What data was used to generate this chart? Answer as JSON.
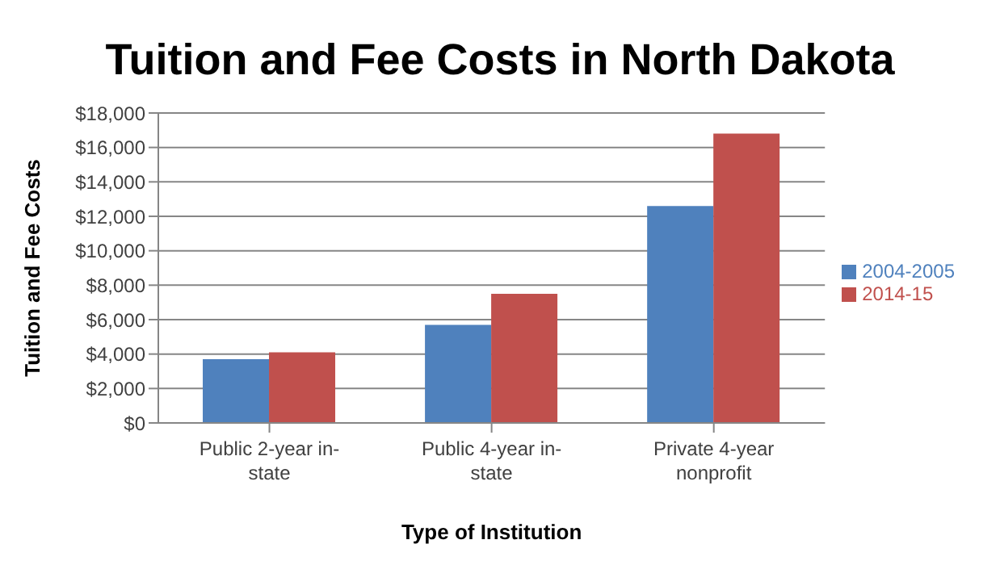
{
  "chart_data": {
    "type": "bar",
    "title": "Tuition and Fee Costs in North Dakota",
    "xlabel": "Type of Institution",
    "ylabel": "Tuition and Fee Costs",
    "categories": [
      "Public 2-year in-state",
      "Public 4-year in-state",
      "Private 4-year nonprofit"
    ],
    "series": [
      {
        "name": "2004-2005",
        "color": "#4f81bd",
        "values": [
          3700,
          5700,
          12600
        ]
      },
      {
        "name": "2014-15",
        "color": "#c0504d",
        "values": [
          4100,
          7500,
          16800
        ]
      }
    ],
    "ylim": [
      0,
      18000
    ],
    "yticks": [
      {
        "value": 0,
        "label": "$0"
      },
      {
        "value": 2000,
        "label": "$2,000"
      },
      {
        "value": 4000,
        "label": "$4,000"
      },
      {
        "value": 6000,
        "label": "$6,000"
      },
      {
        "value": 8000,
        "label": "$8,000"
      },
      {
        "value": 10000,
        "label": "$10,000"
      },
      {
        "value": 12000,
        "label": "$12,000"
      },
      {
        "value": 14000,
        "label": "$14,000"
      },
      {
        "value": 16000,
        "label": "$16,000"
      },
      {
        "value": 18000,
        "label": "$18,000"
      }
    ],
    "grid": "y",
    "legend": "right"
  }
}
